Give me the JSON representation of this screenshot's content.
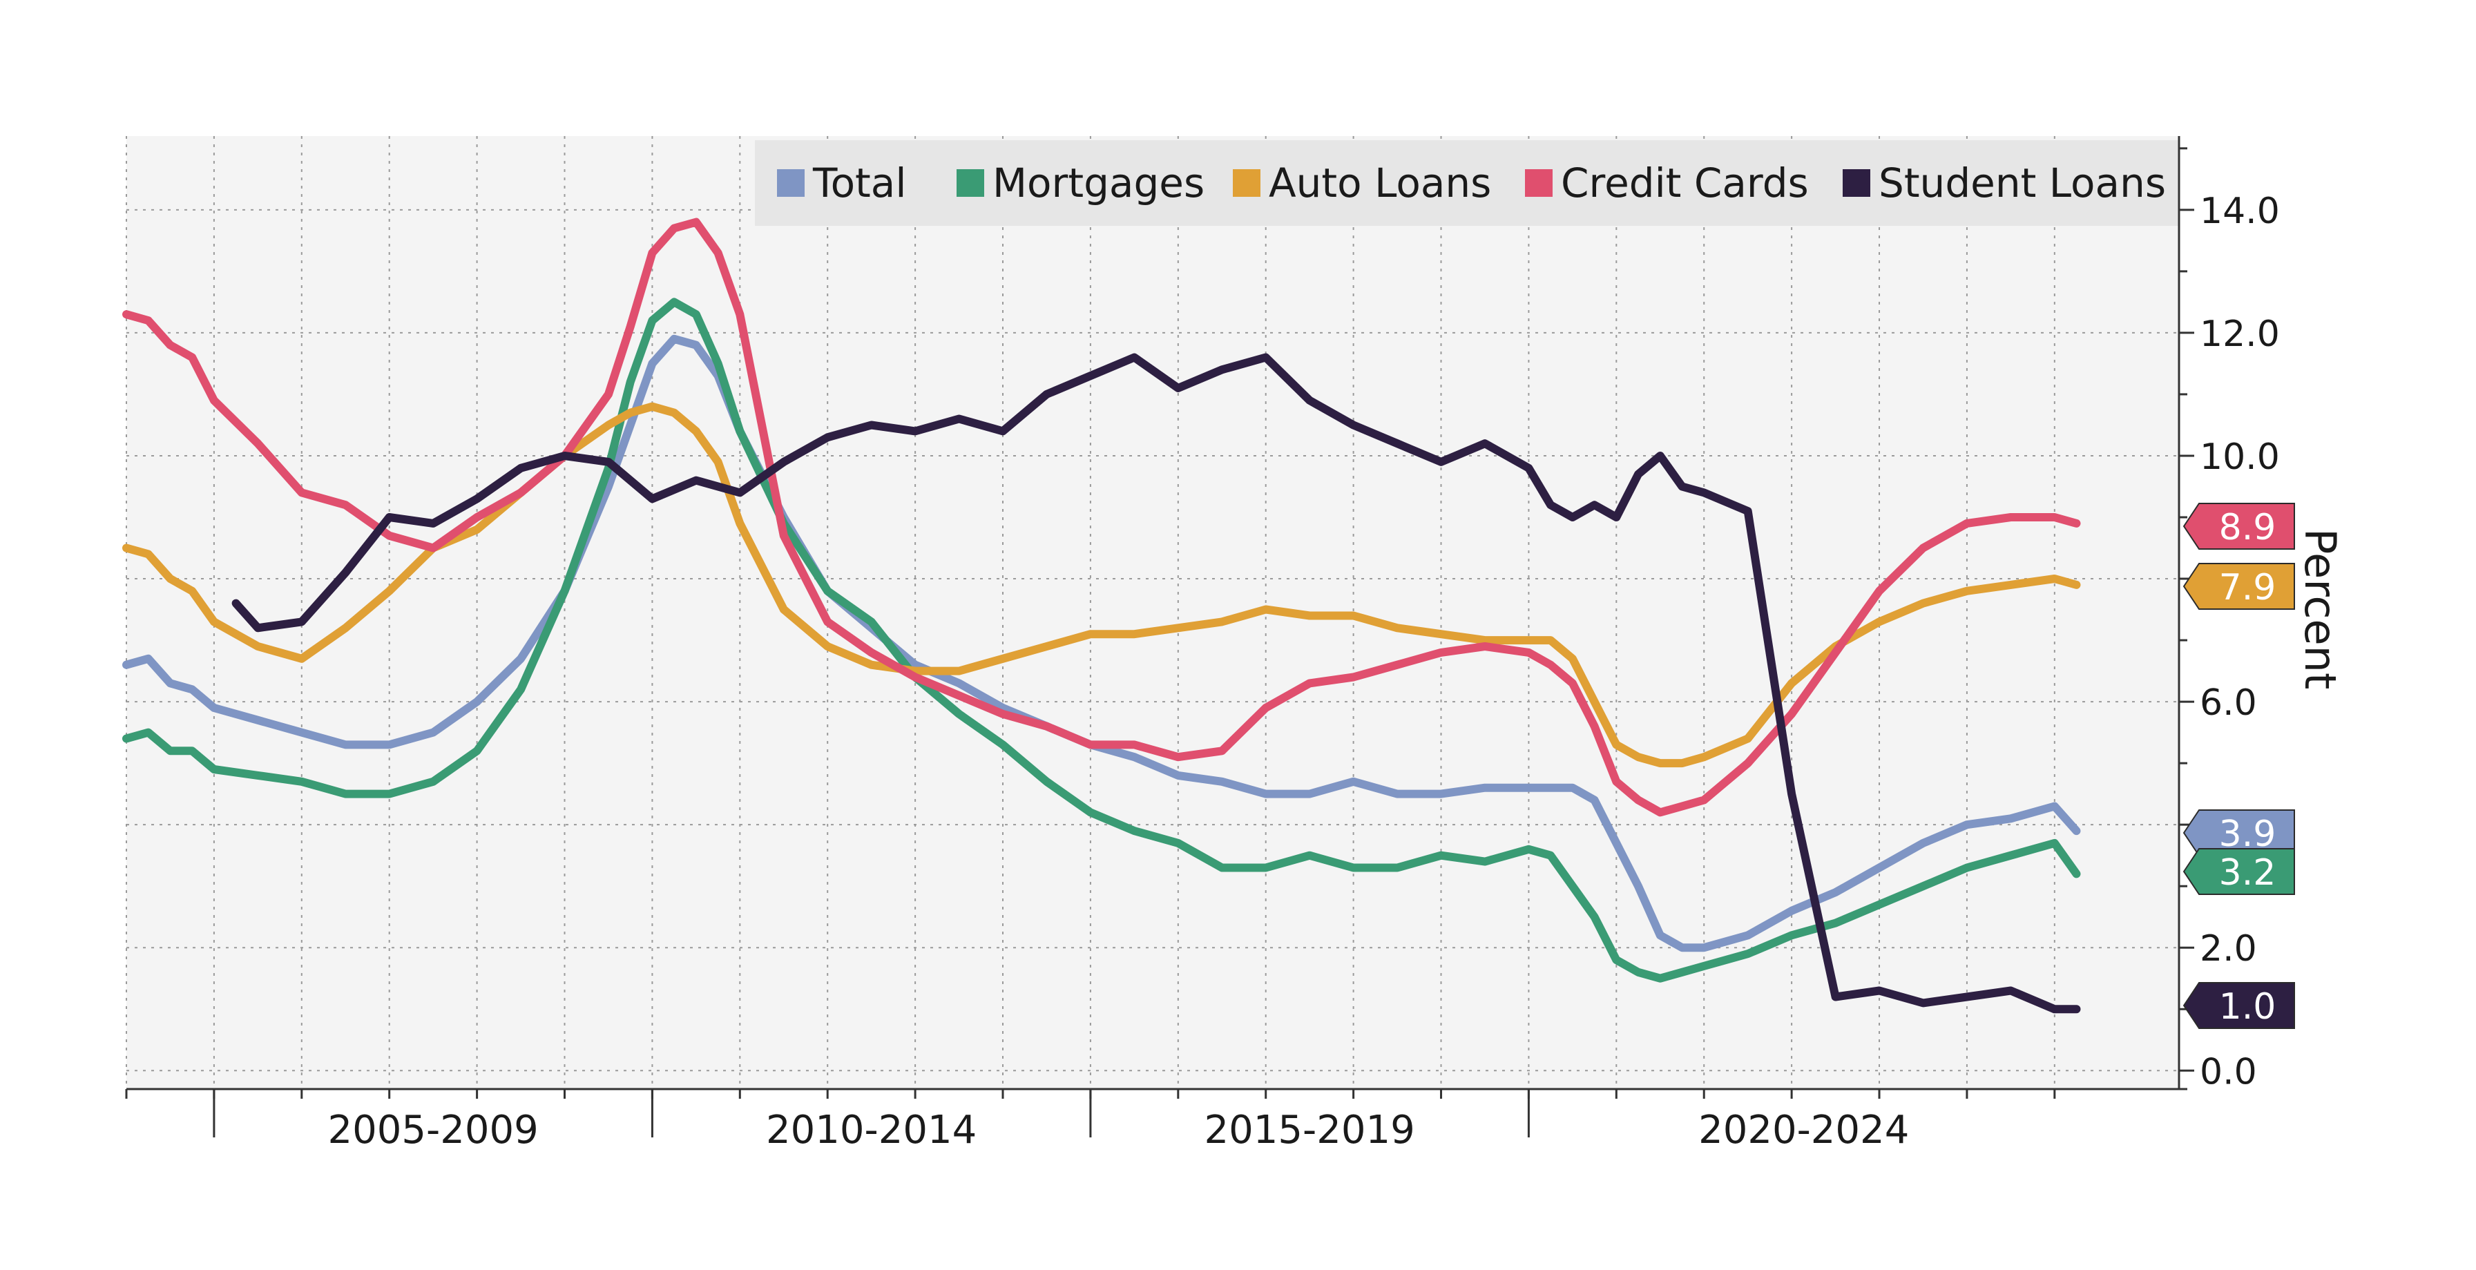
{
  "chart_data": {
    "type": "line",
    "ylabel": "Percent",
    "ylim": [
      -0.3,
      15.2
    ],
    "y_ticks": [
      "0.0",
      "2.0",
      "4.0",
      "6.0",
      "8.0",
      "10.0",
      "12.0",
      "14.0"
    ],
    "y_tick_values": [
      0,
      2,
      4,
      6,
      8,
      10,
      12,
      14
    ],
    "y_axis_position": "right",
    "grid": true,
    "legend_position": "top",
    "x_range": [
      2003.0,
      2025.75
    ],
    "periods": [
      {
        "label": "2005-2009",
        "start": 2004.0,
        "end": 2009.0
      },
      {
        "label": "2010-2014",
        "start": 2009.0,
        "end": 2014.0
      },
      {
        "label": "2015-2019",
        "start": 2014.0,
        "end": 2019.0
      },
      {
        "label": "2020-2024",
        "start": 2019.0,
        "end": 2025.75
      }
    ],
    "series": [
      {
        "name": "Total",
        "color": "#7f95c4",
        "end_label": "3.9",
        "x": [
          2003.0,
          2003.25,
          2003.5,
          2003.75,
          2004.0,
          2004.5,
          2005.0,
          2005.5,
          2006.0,
          2006.5,
          2007.0,
          2007.5,
          2008.0,
          2008.5,
          2008.75,
          2009.0,
          2009.25,
          2009.5,
          2009.75,
          2010.0,
          2010.5,
          2011.0,
          2011.5,
          2012.0,
          2012.5,
          2013.0,
          2013.5,
          2014.0,
          2014.5,
          2015.0,
          2015.5,
          2016.0,
          2016.5,
          2017.0,
          2017.5,
          2018.0,
          2018.5,
          2019.0,
          2019.25,
          2019.5,
          2019.75,
          2020.0,
          2020.25,
          2020.5,
          2020.75,
          2021.0,
          2021.5,
          2022.0,
          2022.5,
          2023.0,
          2023.5,
          2024.0,
          2024.5,
          2025.0,
          2025.25
        ],
        "y": [
          6.6,
          6.7,
          6.3,
          6.2,
          5.9,
          5.7,
          5.5,
          5.3,
          5.3,
          5.5,
          6.0,
          6.7,
          7.8,
          9.5,
          10.5,
          11.5,
          11.9,
          11.8,
          11.3,
          10.4,
          9.0,
          7.8,
          7.2,
          6.6,
          6.3,
          5.9,
          5.6,
          5.3,
          5.1,
          4.8,
          4.7,
          4.5,
          4.5,
          4.7,
          4.5,
          4.5,
          4.6,
          4.6,
          4.6,
          4.6,
          4.4,
          3.7,
          3.0,
          2.2,
          2.0,
          2.0,
          2.2,
          2.6,
          2.9,
          3.3,
          3.7,
          4.0,
          4.1,
          4.3,
          3.9
        ]
      },
      {
        "name": "Mortgages",
        "color": "#3a9b74",
        "end_label": "3.2",
        "x": [
          2003.0,
          2003.25,
          2003.5,
          2003.75,
          2004.0,
          2004.5,
          2005.0,
          2005.5,
          2006.0,
          2006.5,
          2007.0,
          2007.5,
          2008.0,
          2008.5,
          2008.75,
          2009.0,
          2009.25,
          2009.5,
          2009.75,
          2010.0,
          2010.5,
          2011.0,
          2011.5,
          2012.0,
          2012.5,
          2013.0,
          2013.5,
          2014.0,
          2014.5,
          2015.0,
          2015.5,
          2016.0,
          2016.5,
          2017.0,
          2017.5,
          2018.0,
          2018.5,
          2019.0,
          2019.25,
          2019.5,
          2019.75,
          2020.0,
          2020.25,
          2020.5,
          2020.75,
          2021.0,
          2021.5,
          2022.0,
          2022.5,
          2023.0,
          2023.5,
          2024.0,
          2024.5,
          2025.0,
          2025.25
        ],
        "y": [
          5.4,
          5.5,
          5.2,
          5.2,
          4.9,
          4.8,
          4.7,
          4.5,
          4.5,
          4.7,
          5.2,
          6.2,
          7.8,
          9.8,
          11.2,
          12.2,
          12.5,
          12.3,
          11.5,
          10.4,
          8.9,
          7.8,
          7.3,
          6.4,
          5.8,
          5.3,
          4.7,
          4.2,
          3.9,
          3.7,
          3.3,
          3.3,
          3.5,
          3.3,
          3.3,
          3.5,
          3.4,
          3.6,
          3.5,
          3.0,
          2.5,
          1.8,
          1.6,
          1.5,
          1.6,
          1.7,
          1.9,
          2.2,
          2.4,
          2.7,
          3.0,
          3.3,
          3.5,
          3.7,
          3.2
        ]
      },
      {
        "name": "Auto Loans",
        "color": "#e0a035",
        "end_label": "7.9",
        "x": [
          2003.0,
          2003.25,
          2003.5,
          2003.75,
          2004.0,
          2004.5,
          2005.0,
          2005.5,
          2006.0,
          2006.5,
          2007.0,
          2007.5,
          2008.0,
          2008.5,
          2008.75,
          2009.0,
          2009.25,
          2009.5,
          2009.75,
          2010.0,
          2010.5,
          2011.0,
          2011.5,
          2012.0,
          2012.5,
          2013.0,
          2013.5,
          2014.0,
          2014.5,
          2015.0,
          2015.5,
          2016.0,
          2016.5,
          2017.0,
          2017.5,
          2018.0,
          2018.5,
          2019.0,
          2019.25,
          2019.5,
          2019.75,
          2020.0,
          2020.25,
          2020.5,
          2020.75,
          2021.0,
          2021.5,
          2022.0,
          2022.5,
          2023.0,
          2023.5,
          2024.0,
          2024.5,
          2025.0,
          2025.25
        ],
        "y": [
          8.5,
          8.4,
          8.0,
          7.8,
          7.3,
          6.9,
          6.7,
          7.2,
          7.8,
          8.5,
          8.8,
          9.4,
          10.0,
          10.5,
          10.7,
          10.8,
          10.7,
          10.4,
          9.9,
          8.9,
          7.5,
          6.9,
          6.6,
          6.5,
          6.5,
          6.7,
          6.9,
          7.1,
          7.1,
          7.2,
          7.3,
          7.5,
          7.4,
          7.4,
          7.2,
          7.1,
          7.0,
          7.0,
          7.0,
          6.7,
          6.0,
          5.3,
          5.1,
          5.0,
          5.0,
          5.1,
          5.4,
          6.3,
          6.9,
          7.3,
          7.6,
          7.8,
          7.9,
          8.0,
          7.9
        ]
      },
      {
        "name": "Credit Cards",
        "color": "#e04f6e",
        "end_label": "8.9",
        "x": [
          2003.0,
          2003.25,
          2003.5,
          2003.75,
          2004.0,
          2004.5,
          2005.0,
          2005.5,
          2006.0,
          2006.5,
          2007.0,
          2007.5,
          2008.0,
          2008.5,
          2008.75,
          2009.0,
          2009.25,
          2009.5,
          2009.75,
          2010.0,
          2010.5,
          2011.0,
          2011.5,
          2012.0,
          2012.5,
          2013.0,
          2013.5,
          2014.0,
          2014.5,
          2015.0,
          2015.5,
          2016.0,
          2016.5,
          2017.0,
          2017.5,
          2018.0,
          2018.5,
          2019.0,
          2019.25,
          2019.5,
          2019.75,
          2020.0,
          2020.25,
          2020.5,
          2020.75,
          2021.0,
          2021.5,
          2022.0,
          2022.5,
          2023.0,
          2023.5,
          2024.0,
          2024.5,
          2025.0,
          2025.25
        ],
        "y": [
          12.3,
          12.2,
          11.8,
          11.6,
          10.9,
          10.2,
          9.4,
          9.2,
          8.7,
          8.5,
          9.0,
          9.4,
          10.0,
          11.0,
          12.1,
          13.3,
          13.7,
          13.8,
          13.3,
          12.3,
          8.7,
          7.3,
          6.8,
          6.4,
          6.1,
          5.8,
          5.6,
          5.3,
          5.3,
          5.1,
          5.2,
          5.9,
          6.3,
          6.4,
          6.6,
          6.8,
          6.9,
          6.8,
          6.6,
          6.3,
          5.6,
          4.7,
          4.4,
          4.2,
          4.3,
          4.4,
          5.0,
          5.8,
          6.8,
          7.8,
          8.5,
          8.9,
          9.0,
          9.0,
          8.9
        ]
      },
      {
        "name": "Student Loans",
        "color": "#2d1f42",
        "end_label": "1.0",
        "x": [
          2004.25,
          2004.5,
          2005.0,
          2005.5,
          2006.0,
          2006.5,
          2007.0,
          2007.5,
          2008.0,
          2008.5,
          2009.0,
          2009.5,
          2010.0,
          2010.5,
          2011.0,
          2011.5,
          2012.0,
          2012.5,
          2013.0,
          2013.5,
          2014.0,
          2014.5,
          2015.0,
          2015.5,
          2016.0,
          2016.5,
          2017.0,
          2017.5,
          2018.0,
          2018.5,
          2019.0,
          2019.25,
          2019.5,
          2019.75,
          2020.0,
          2020.25,
          2020.5,
          2020.75,
          2021.0,
          2021.5,
          2022.0,
          2022.5,
          2023.0,
          2023.5,
          2024.0,
          2024.5,
          2025.0,
          2025.25
        ],
        "y": [
          7.6,
          7.2,
          7.3,
          8.1,
          9.0,
          8.9,
          9.3,
          9.8,
          10.0,
          9.9,
          9.3,
          9.6,
          9.4,
          9.9,
          10.3,
          10.5,
          10.4,
          10.6,
          10.4,
          11.0,
          11.3,
          11.6,
          11.1,
          11.4,
          11.6,
          10.9,
          10.5,
          10.2,
          9.9,
          10.2,
          9.8,
          9.2,
          9.0,
          9.2,
          9.0,
          9.7,
          10.0,
          9.5,
          9.4,
          9.1,
          4.5,
          1.2,
          1.3,
          1.1,
          1.2,
          1.3,
          1.0,
          1.0
        ]
      }
    ]
  }
}
